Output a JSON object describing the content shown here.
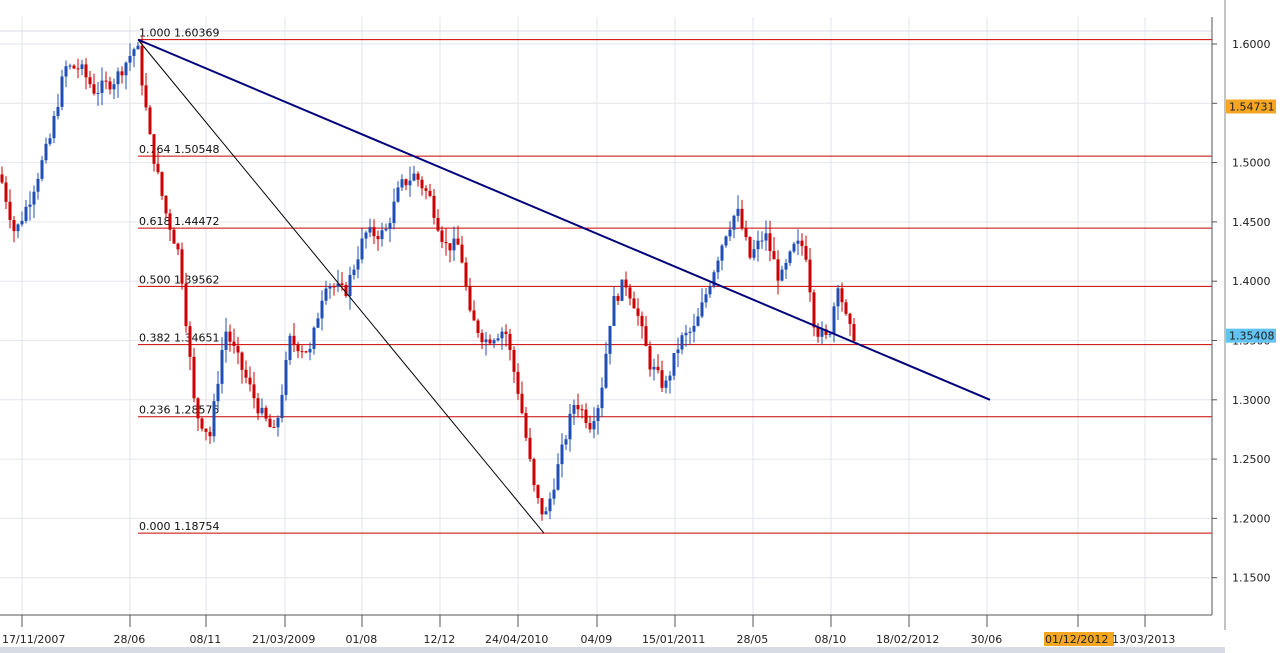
{
  "chart_data": {
    "type": "candlestick",
    "y_axis": {
      "min": 1.12,
      "max": 1.625,
      "ticks": [
        "1.6000",
        "1.5500",
        "1.5000",
        "1.4500",
        "1.4000",
        "1.3500",
        "1.3000",
        "1.2500",
        "1.2000",
        "1.1500"
      ],
      "tick_values": [
        1.6,
        1.55,
        1.5,
        1.45,
        1.4,
        1.35,
        1.3,
        1.25,
        1.2,
        1.15
      ]
    },
    "x_axis": {
      "labels": [
        "17/11/2007",
        "28/06",
        "08/11",
        "21/03/2009",
        "01/08",
        "12/12",
        "24/04/2010",
        "04/09",
        "15/01/2011",
        "28/05",
        "08/10",
        "18/02/2012",
        "30/06",
        "01/12/2012",
        "13/03/2013"
      ],
      "highlighted_label": "01/12/2012",
      "highlight_color": "#f5a623"
    },
    "price_tags": [
      {
        "value": 1.54731,
        "text": "1.54731",
        "color": "#f5a623"
      },
      {
        "value": 1.35408,
        "text": "1.35408",
        "color": "#63c3f3"
      }
    ],
    "fibonacci": {
      "color": "#cc0000",
      "levels": [
        {
          "ratio": "1.000",
          "price": 1.60369,
          "label": "1.000 1.60369"
        },
        {
          "ratio": "0.764",
          "price": 1.50548,
          "label": "0.764 1.50548"
        },
        {
          "ratio": "0.618",
          "price": 1.44472,
          "label": "0.618 1.44472"
        },
        {
          "ratio": "0.500",
          "price": 1.39562,
          "label": "0.500 1.39562"
        },
        {
          "ratio": "0.382",
          "price": 1.34651,
          "label": "0.382 1.34651"
        },
        {
          "ratio": "0.236",
          "price": 1.28575,
          "label": "0.236 1.28575"
        },
        {
          "ratio": "0.000",
          "price": 1.18754,
          "label": "0.000 1.18754"
        }
      ]
    },
    "candle_colors": {
      "up": "#1f4fb4",
      "down": "#cc0000"
    },
    "trendline_color": "#00007a",
    "grid": true
  }
}
